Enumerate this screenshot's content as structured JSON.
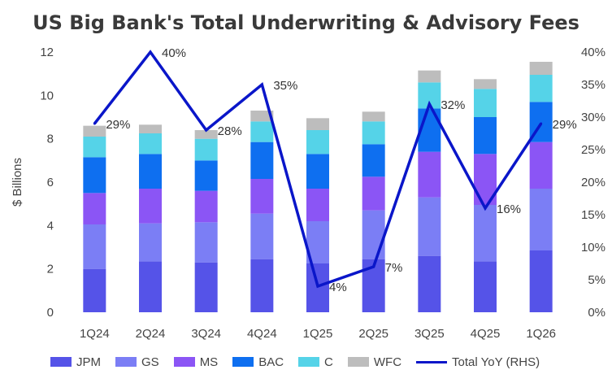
{
  "chart_data": {
    "type": "bar",
    "stacked": true,
    "title": "US Big Bank's Total Underwriting & Advisory Fees",
    "ylabel": "$ Billions",
    "ylim": [
      0,
      12
    ],
    "yticks": [
      "0",
      "2",
      "4",
      "6",
      "8",
      "10",
      "12"
    ],
    "y2lim": [
      0,
      40
    ],
    "y2ticks": [
      "0%",
      "5%",
      "10%",
      "15%",
      "20%",
      "25%",
      "30%",
      "35%",
      "40%"
    ],
    "categories": [
      "1Q24",
      "2Q24",
      "3Q24",
      "4Q24",
      "1Q25",
      "2Q25",
      "3Q25",
      "4Q25",
      "1Q26"
    ],
    "series": [
      {
        "name": "JPM",
        "color": "#5553e8",
        "values": [
          2.0,
          2.35,
          2.3,
          2.45,
          2.25,
          2.45,
          2.6,
          2.35,
          2.85
        ]
      },
      {
        "name": "GS",
        "color": "#7b7ef5",
        "values": [
          2.05,
          1.75,
          1.85,
          2.1,
          1.95,
          2.25,
          2.7,
          2.6,
          2.85
        ]
      },
      {
        "name": "MS",
        "color": "#8b55f5",
        "values": [
          1.45,
          1.6,
          1.45,
          1.6,
          1.5,
          1.55,
          2.1,
          2.35,
          2.15
        ]
      },
      {
        "name": "BAC",
        "color": "#0e6ff0",
        "values": [
          1.65,
          1.6,
          1.4,
          1.7,
          1.6,
          1.5,
          2.0,
          1.7,
          1.85
        ]
      },
      {
        "name": "C",
        "color": "#55d3e8",
        "values": [
          0.95,
          0.95,
          1.0,
          0.95,
          1.1,
          1.05,
          1.2,
          1.3,
          1.25
        ]
      },
      {
        "name": "WFC",
        "color": "#bdbdbd",
        "values": [
          0.5,
          0.4,
          0.4,
          0.5,
          0.55,
          0.45,
          0.55,
          0.45,
          0.6
        ]
      }
    ],
    "line": {
      "name": "Total YoY (RHS)",
      "color": "#0a16c9",
      "axis": "right",
      "values": [
        29,
        40,
        28,
        35,
        4,
        7,
        32,
        16,
        29
      ],
      "labels": [
        "29%",
        "40%",
        "28%",
        "35%",
        "4%",
        "7%",
        "32%",
        "16%",
        "29%"
      ]
    },
    "grid": false,
    "legend_position": "bottom"
  }
}
